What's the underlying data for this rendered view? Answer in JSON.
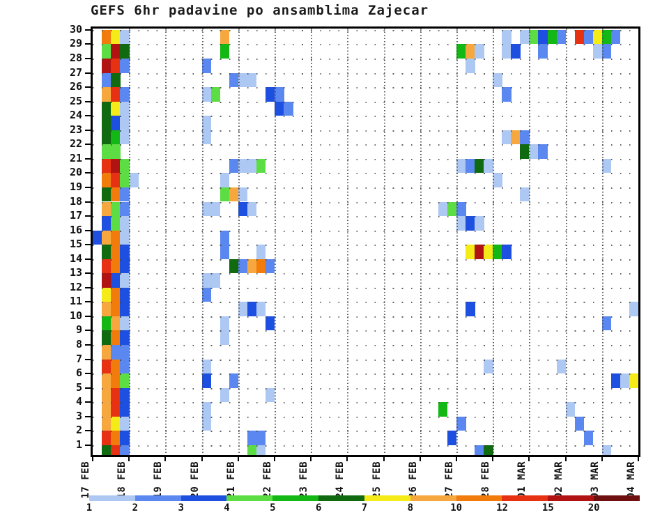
{
  "title": "GEFS 6hr padavine po ansamblima Zajecar",
  "chart_data": {
    "type": "heatmap",
    "title": "GEFS 6hr padavine po ansamblima Zajecar",
    "description": "GEFS ensemble 6-hour precipitation meteogram; one row per ensemble member (1-30), one column per 6h interval, colored by precipitation amount (mm) per legend",
    "x_axis": {
      "day_labels": [
        "17 FEB",
        "18 FEB",
        "19 FEB",
        "20 FEB",
        "21 FEB",
        "22 FEB",
        "23 FEB",
        "24 FEB",
        "25 FEB",
        "26 FEB",
        "27 FEB",
        "28 FEB",
        "01 MAR",
        "02 MAR",
        "03 MAR",
        "04 MAR"
      ],
      "slots_per_day": 4,
      "slot_hours": 6
    },
    "y_axis": {
      "members": [
        30,
        29,
        28,
        27,
        26,
        25,
        24,
        23,
        22,
        21,
        20,
        19,
        18,
        17,
        16,
        15,
        14,
        13,
        12,
        11,
        10,
        9,
        8,
        7,
        6,
        5,
        4,
        3,
        2,
        1
      ]
    },
    "legend": {
      "values": [
        "1",
        "2",
        "3",
        "4",
        "5",
        "6",
        "7",
        "8",
        "10",
        "12",
        "15",
        "20"
      ],
      "colors": [
        "#adc8f2",
        "#5b87f0",
        "#1d4fe0",
        "#5ddd44",
        "#14b814",
        "#106a10",
        "#f4eb18",
        "#f6a83e",
        "#f17c0c",
        "#e63212",
        "#b11212",
        "#6f1010"
      ],
      "position": "bottom"
    },
    "level_colors": {
      "1": "#adc8f2",
      "2": "#5b87f0",
      "3": "#1d4fe0",
      "4": "#5ddd44",
      "5": "#14b814",
      "6": "#106a10",
      "7": "#f4eb18",
      "8": "#f6a83e",
      "10": "#f17c0c",
      "12": "#e63212",
      "15": "#b11212",
      "20": "#6f1010"
    },
    "cells": [
      [
        30,
        0,
        1,
        10
      ],
      [
        30,
        0,
        2,
        7
      ],
      [
        30,
        0,
        3,
        1
      ],
      [
        30,
        3,
        2,
        8
      ],
      [
        30,
        11,
        1,
        1
      ],
      [
        30,
        11,
        3,
        1
      ],
      [
        30,
        12,
        0,
        4
      ],
      [
        30,
        12,
        1,
        3
      ],
      [
        30,
        12,
        2,
        5
      ],
      [
        30,
        12,
        3,
        2
      ],
      [
        30,
        13,
        1,
        12
      ],
      [
        30,
        13,
        2,
        2
      ],
      [
        30,
        13,
        3,
        7
      ],
      [
        30,
        14,
        0,
        5
      ],
      [
        30,
        14,
        1,
        2
      ],
      [
        29,
        0,
        1,
        4
      ],
      [
        29,
        0,
        2,
        15
      ],
      [
        29,
        0,
        3,
        6
      ],
      [
        29,
        3,
        2,
        5
      ],
      [
        29,
        10,
        0,
        5
      ],
      [
        29,
        10,
        1,
        8
      ],
      [
        29,
        10,
        2,
        1
      ],
      [
        29,
        11,
        1,
        1
      ],
      [
        29,
        11,
        2,
        3
      ],
      [
        29,
        12,
        1,
        2
      ],
      [
        29,
        13,
        3,
        1
      ],
      [
        29,
        14,
        0,
        2
      ],
      [
        28,
        0,
        1,
        15
      ],
      [
        28,
        0,
        2,
        12
      ],
      [
        28,
        0,
        3,
        2
      ],
      [
        28,
        3,
        0,
        2
      ],
      [
        28,
        10,
        1,
        1
      ],
      [
        27,
        0,
        1,
        2
      ],
      [
        27,
        0,
        2,
        6
      ],
      [
        27,
        3,
        3,
        2
      ],
      [
        27,
        4,
        0,
        1
      ],
      [
        27,
        4,
        1,
        1
      ],
      [
        27,
        11,
        0,
        1
      ],
      [
        26,
        0,
        1,
        8
      ],
      [
        26,
        0,
        2,
        12
      ],
      [
        26,
        0,
        3,
        2
      ],
      [
        26,
        3,
        0,
        1
      ],
      [
        26,
        3,
        1,
        4
      ],
      [
        26,
        4,
        3,
        3
      ],
      [
        26,
        5,
        0,
        2
      ],
      [
        26,
        11,
        1,
        2
      ],
      [
        25,
        0,
        1,
        6
      ],
      [
        25,
        0,
        2,
        7
      ],
      [
        25,
        0,
        3,
        1
      ],
      [
        25,
        5,
        0,
        3
      ],
      [
        25,
        5,
        1,
        2
      ],
      [
        24,
        0,
        1,
        6
      ],
      [
        24,
        0,
        2,
        3
      ],
      [
        24,
        0,
        3,
        1
      ],
      [
        24,
        3,
        0,
        1
      ],
      [
        23,
        0,
        1,
        6
      ],
      [
        23,
        0,
        2,
        5
      ],
      [
        23,
        0,
        3,
        1
      ],
      [
        23,
        3,
        0,
        1
      ],
      [
        23,
        11,
        1,
        1
      ],
      [
        23,
        11,
        2,
        8
      ],
      [
        23,
        11,
        3,
        2
      ],
      [
        22,
        0,
        1,
        4
      ],
      [
        22,
        0,
        2,
        4
      ],
      [
        22,
        11,
        3,
        6
      ],
      [
        22,
        12,
        0,
        1
      ],
      [
        22,
        12,
        1,
        2
      ],
      [
        21,
        0,
        1,
        12
      ],
      [
        21,
        0,
        2,
        15
      ],
      [
        21,
        0,
        3,
        4
      ],
      [
        21,
        3,
        3,
        2
      ],
      [
        21,
        4,
        0,
        1
      ],
      [
        21,
        4,
        1,
        1
      ],
      [
        21,
        4,
        2,
        4
      ],
      [
        21,
        10,
        0,
        1
      ],
      [
        21,
        10,
        1,
        2
      ],
      [
        21,
        10,
        2,
        6
      ],
      [
        21,
        10,
        3,
        1
      ],
      [
        21,
        14,
        0,
        1
      ],
      [
        20,
        0,
        1,
        10
      ],
      [
        20,
        0,
        2,
        12
      ],
      [
        20,
        0,
        3,
        4
      ],
      [
        20,
        1,
        0,
        1
      ],
      [
        20,
        3,
        2,
        1
      ],
      [
        20,
        11,
        0,
        1
      ],
      [
        19,
        0,
        1,
        6
      ],
      [
        19,
        0,
        2,
        10
      ],
      [
        19,
        0,
        3,
        2
      ],
      [
        19,
        3,
        2,
        4
      ],
      [
        19,
        3,
        3,
        8
      ],
      [
        19,
        4,
        0,
        1
      ],
      [
        19,
        11,
        3,
        1
      ],
      [
        18,
        0,
        1,
        8
      ],
      [
        18,
        0,
        2,
        4
      ],
      [
        18,
        0,
        3,
        2
      ],
      [
        18,
        3,
        0,
        1
      ],
      [
        18,
        3,
        1,
        1
      ],
      [
        18,
        4,
        0,
        3
      ],
      [
        18,
        4,
        1,
        1
      ],
      [
        18,
        9,
        2,
        1
      ],
      [
        18,
        9,
        3,
        4
      ],
      [
        18,
        10,
        0,
        2
      ],
      [
        17,
        0,
        1,
        3
      ],
      [
        17,
        0,
        2,
        4
      ],
      [
        17,
        0,
        3,
        1
      ],
      [
        17,
        10,
        0,
        1
      ],
      [
        17,
        10,
        1,
        3
      ],
      [
        17,
        10,
        2,
        1
      ],
      [
        16,
        0,
        0,
        3
      ],
      [
        16,
        0,
        1,
        8
      ],
      [
        16,
        0,
        2,
        10
      ],
      [
        16,
        0,
        3,
        1
      ],
      [
        16,
        3,
        2,
        2
      ],
      [
        15,
        0,
        1,
        6
      ],
      [
        15,
        0,
        2,
        10
      ],
      [
        15,
        0,
        3,
        3
      ],
      [
        15,
        3,
        2,
        2
      ],
      [
        15,
        4,
        2,
        1
      ],
      [
        15,
        10,
        1,
        7
      ],
      [
        15,
        10,
        2,
        15
      ],
      [
        15,
        10,
        3,
        7
      ],
      [
        15,
        11,
        0,
        5
      ],
      [
        15,
        11,
        1,
        3
      ],
      [
        14,
        0,
        1,
        12
      ],
      [
        14,
        0,
        2,
        10
      ],
      [
        14,
        0,
        3,
        3
      ],
      [
        14,
        3,
        3,
        6
      ],
      [
        14,
        4,
        0,
        2
      ],
      [
        14,
        4,
        1,
        8
      ],
      [
        14,
        4,
        2,
        10
      ],
      [
        14,
        4,
        3,
        2
      ],
      [
        13,
        0,
        1,
        15
      ],
      [
        13,
        0,
        2,
        3
      ],
      [
        13,
        0,
        3,
        1
      ],
      [
        13,
        3,
        0,
        1
      ],
      [
        13,
        3,
        1,
        1
      ],
      [
        12,
        0,
        1,
        7
      ],
      [
        12,
        0,
        2,
        10
      ],
      [
        12,
        0,
        3,
        3
      ],
      [
        12,
        3,
        0,
        2
      ],
      [
        11,
        0,
        1,
        8
      ],
      [
        11,
        0,
        2,
        10
      ],
      [
        11,
        0,
        3,
        3
      ],
      [
        11,
        4,
        0,
        1
      ],
      [
        11,
        4,
        1,
        3
      ],
      [
        11,
        4,
        2,
        1
      ],
      [
        11,
        10,
        1,
        3
      ],
      [
        11,
        14,
        3,
        1
      ],
      [
        10,
        0,
        1,
        5
      ],
      [
        10,
        0,
        2,
        8
      ],
      [
        10,
        0,
        3,
        1
      ],
      [
        10,
        3,
        2,
        1
      ],
      [
        10,
        4,
        3,
        3
      ],
      [
        10,
        14,
        0,
        2
      ],
      [
        9,
        0,
        1,
        6
      ],
      [
        9,
        0,
        2,
        10
      ],
      [
        9,
        0,
        3,
        3
      ],
      [
        9,
        3,
        2,
        1
      ],
      [
        8,
        0,
        1,
        8
      ],
      [
        8,
        0,
        2,
        2
      ],
      [
        8,
        0,
        3,
        2
      ],
      [
        7,
        0,
        1,
        12
      ],
      [
        7,
        0,
        2,
        10
      ],
      [
        7,
        0,
        3,
        2
      ],
      [
        7,
        3,
        0,
        1
      ],
      [
        7,
        10,
        3,
        1
      ],
      [
        7,
        12,
        3,
        1
      ],
      [
        6,
        0,
        1,
        8
      ],
      [
        6,
        0,
        2,
        10
      ],
      [
        6,
        0,
        3,
        4
      ],
      [
        6,
        3,
        0,
        3
      ],
      [
        6,
        3,
        3,
        2
      ],
      [
        6,
        14,
        1,
        3
      ],
      [
        6,
        14,
        2,
        1
      ],
      [
        6,
        14,
        3,
        7
      ],
      [
        5,
        0,
        1,
        8
      ],
      [
        5,
        0,
        2,
        12
      ],
      [
        5,
        0,
        3,
        3
      ],
      [
        5,
        3,
        2,
        1
      ],
      [
        5,
        4,
        3,
        1
      ],
      [
        4,
        0,
        1,
        8
      ],
      [
        4,
        0,
        2,
        12
      ],
      [
        4,
        0,
        3,
        3
      ],
      [
        4,
        3,
        0,
        1
      ],
      [
        4,
        9,
        2,
        5
      ],
      [
        4,
        13,
        0,
        1
      ],
      [
        3,
        0,
        1,
        8
      ],
      [
        3,
        0,
        2,
        7
      ],
      [
        3,
        0,
        3,
        1
      ],
      [
        3,
        3,
        0,
        1
      ],
      [
        3,
        10,
        0,
        2
      ],
      [
        3,
        13,
        1,
        2
      ],
      [
        2,
        0,
        1,
        12
      ],
      [
        2,
        0,
        2,
        10
      ],
      [
        2,
        0,
        3,
        3
      ],
      [
        2,
        4,
        1,
        2
      ],
      [
        2,
        4,
        2,
        2
      ],
      [
        2,
        9,
        3,
        3
      ],
      [
        2,
        13,
        2,
        2
      ],
      [
        1,
        0,
        1,
        6
      ],
      [
        1,
        0,
        2,
        12
      ],
      [
        1,
        0,
        3,
        2
      ],
      [
        1,
        4,
        1,
        4
      ],
      [
        1,
        4,
        2,
        1
      ],
      [
        1,
        10,
        2,
        2
      ],
      [
        1,
        10,
        3,
        6
      ],
      [
        1,
        14,
        0,
        1
      ]
    ]
  }
}
